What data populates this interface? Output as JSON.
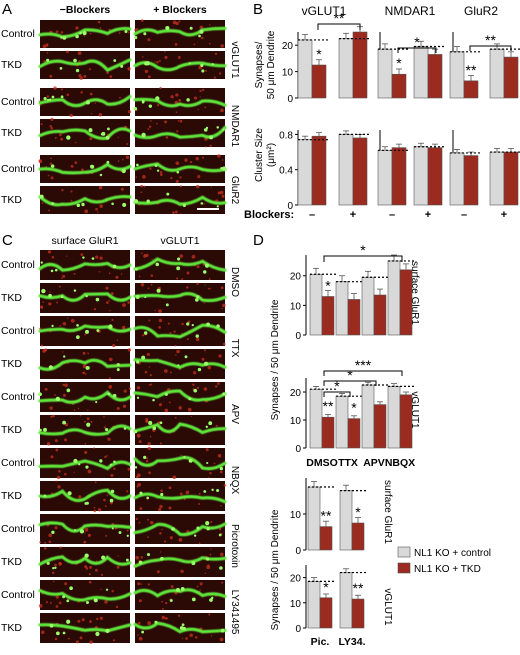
{
  "panels": {
    "A": {
      "letter": "A",
      "col_headers": [
        "−Blockers",
        "+ Blockers"
      ],
      "rows": [
        "Control",
        "TKD",
        "Control",
        "TKD",
        "Control",
        "TKD"
      ],
      "side_labels": [
        "vGLUT1",
        "NMDAR1",
        "GluR2"
      ]
    },
    "B": {
      "letter": "B",
      "group_titles": [
        "vGLUT1",
        "NMDAR1",
        "GluR2"
      ],
      "top_ylabel": [
        "Synapses/",
        "50 μm Dendrite"
      ],
      "bottom_ylabel": [
        "Cluster Size",
        "(μm²)"
      ],
      "blockers_label": "Blockers:",
      "blocker_signs": [
        "–",
        "+",
        "–",
        "+",
        "–",
        "+"
      ]
    },
    "C": {
      "letter": "C",
      "col_headers": [
        "surface GluR1",
        "vGLUT1"
      ],
      "rows": [
        "Control",
        "TKD",
        "Control",
        "TKD",
        "Control",
        "TKD",
        "Control",
        "TKD",
        "Control",
        "TKD",
        "Control",
        "TKD"
      ],
      "side_labels": [
        "DMSO",
        "TTX",
        "APV",
        "NBQX",
        "Picrotoxin",
        "LY341495"
      ]
    },
    "D": {
      "letter": "D",
      "ylabel_1": "Synapses / 50 μm Dendrite",
      "ylabel_2": "Synapses / 50 μm Dendrite",
      "right_labels": [
        "surface GluR1",
        "vGLUT1",
        "surface GluR1",
        "vGLUT1"
      ],
      "legend": [
        "NL1 KO + control",
        "NL1 KO + TKD"
      ]
    }
  },
  "colors": {
    "control": "#d9d9d9",
    "tkd": "#9b2a1f",
    "dendrite": "#5ee63a",
    "background": "#2b0a06"
  },
  "chart_data": [
    {
      "type": "bar",
      "title": "vGLUT1",
      "categories": [
        "– Blockers",
        "+ Blockers"
      ],
      "series": [
        {
          "name": "NL1 KO + control",
          "values": [
            22,
            22.5
          ]
        },
        {
          "name": "NL1 KO + TKD",
          "values": [
            12.5,
            25
          ]
        }
      ],
      "ylim": [
        0,
        25
      ],
      "yticks": [
        0,
        10,
        20
      ],
      "significance": [
        "*",
        "**"
      ]
    },
    {
      "type": "bar",
      "title": "NMDAR1",
      "categories": [
        "– Blockers",
        "+ Blockers"
      ],
      "series": [
        {
          "name": "NL1 KO + control",
          "values": [
            18.5,
            19.5
          ]
        },
        {
          "name": "NL1 KO + TKD",
          "values": [
            9,
            16.5
          ]
        }
      ],
      "ylim": [
        0,
        25
      ],
      "significance": [
        "*",
        "*"
      ]
    },
    {
      "type": "bar",
      "title": "GluR2",
      "categories": [
        "– Blockers",
        "+ Blockers"
      ],
      "series": [
        {
          "name": "NL1 KO + control",
          "values": [
            17.5,
            18.5
          ]
        },
        {
          "name": "NL1 KO + TKD",
          "values": [
            6.5,
            15.5
          ]
        }
      ],
      "ylim": [
        0,
        25
      ],
      "significance": [
        "**",
        "**"
      ]
    },
    {
      "type": "bar",
      "title": "vGLUT1 cluster size",
      "categories": [
        "– Blockers",
        "+ Blockers"
      ],
      "series": [
        {
          "name": "NL1 KO + control",
          "values": [
            0.74,
            0.8
          ]
        },
        {
          "name": "NL1 KO + TKD",
          "values": [
            0.78,
            0.76
          ]
        }
      ],
      "ylim": [
        0,
        0.85
      ],
      "yticks": [
        0,
        0.4,
        0.8
      ]
    },
    {
      "type": "bar",
      "title": "NMDAR1 cluster size",
      "categories": [
        "– Blockers",
        "+ Blockers"
      ],
      "series": [
        {
          "name": "NL1 KO + control",
          "values": [
            0.62,
            0.66
          ]
        },
        {
          "name": "NL1 KO + TKD",
          "values": [
            0.65,
            0.65
          ]
        }
      ],
      "ylim": [
        0,
        0.85
      ]
    },
    {
      "type": "bar",
      "title": "GluR2 cluster size",
      "categories": [
        "– Blockers",
        "+ Blockers"
      ],
      "series": [
        {
          "name": "NL1 KO + control",
          "values": [
            0.59,
            0.6
          ]
        },
        {
          "name": "NL1 KO + TKD",
          "values": [
            0.56,
            0.6
          ]
        }
      ],
      "ylim": [
        0,
        0.85
      ]
    },
    {
      "type": "bar",
      "title": "surface GluR1",
      "categories": [
        "DMSO",
        "TTX",
        "APV",
        "NBQX"
      ],
      "series": [
        {
          "name": "NL1 KO + control",
          "values": [
            20.5,
            18,
            19.5,
            25
          ]
        },
        {
          "name": "NL1 KO + TKD",
          "values": [
            13,
            12,
            13.5,
            22
          ]
        }
      ],
      "ylim": [
        0,
        27
      ],
      "yticks": [
        0,
        10,
        20
      ],
      "significance": [
        "*",
        "*"
      ]
    },
    {
      "type": "bar",
      "title": "vGLUT1",
      "categories": [
        "DMSO",
        "TTX",
        "APV",
        "NBQX"
      ],
      "series": [
        {
          "name": "NL1 KO + control",
          "values": [
            21,
            18.5,
            22.5,
            22
          ]
        },
        {
          "name": "NL1 KO + TKD",
          "values": [
            11,
            10.5,
            15.5,
            19
          ]
        }
      ],
      "ylim": [
        0,
        25
      ],
      "yticks": [
        0,
        10,
        20
      ],
      "significance": [
        "**",
        "*",
        "*",
        "*",
        "***"
      ]
    },
    {
      "type": "bar",
      "title": "surface GluR1",
      "categories": [
        "Pic.",
        "LY34."
      ],
      "series": [
        {
          "name": "NL1 KO + control",
          "values": [
            17.5,
            16.5
          ]
        },
        {
          "name": "NL1 KO + TKD",
          "values": [
            6.5,
            7.5
          ]
        }
      ],
      "ylim": [
        0,
        20
      ],
      "yticks": [
        0,
        10
      ],
      "significance": [
        "**",
        "*"
      ]
    },
    {
      "type": "bar",
      "title": "vGLUT1",
      "categories": [
        "Pic.",
        "LY34."
      ],
      "series": [
        {
          "name": "NL1 KO + control",
          "values": [
            18.5,
            22
          ]
        },
        {
          "name": "NL1 KO + TKD",
          "values": [
            12,
            11.5
          ]
        }
      ],
      "ylim": [
        0,
        25
      ],
      "yticks": [
        0,
        10,
        20
      ],
      "significance": [
        "*",
        "**"
      ]
    }
  ]
}
